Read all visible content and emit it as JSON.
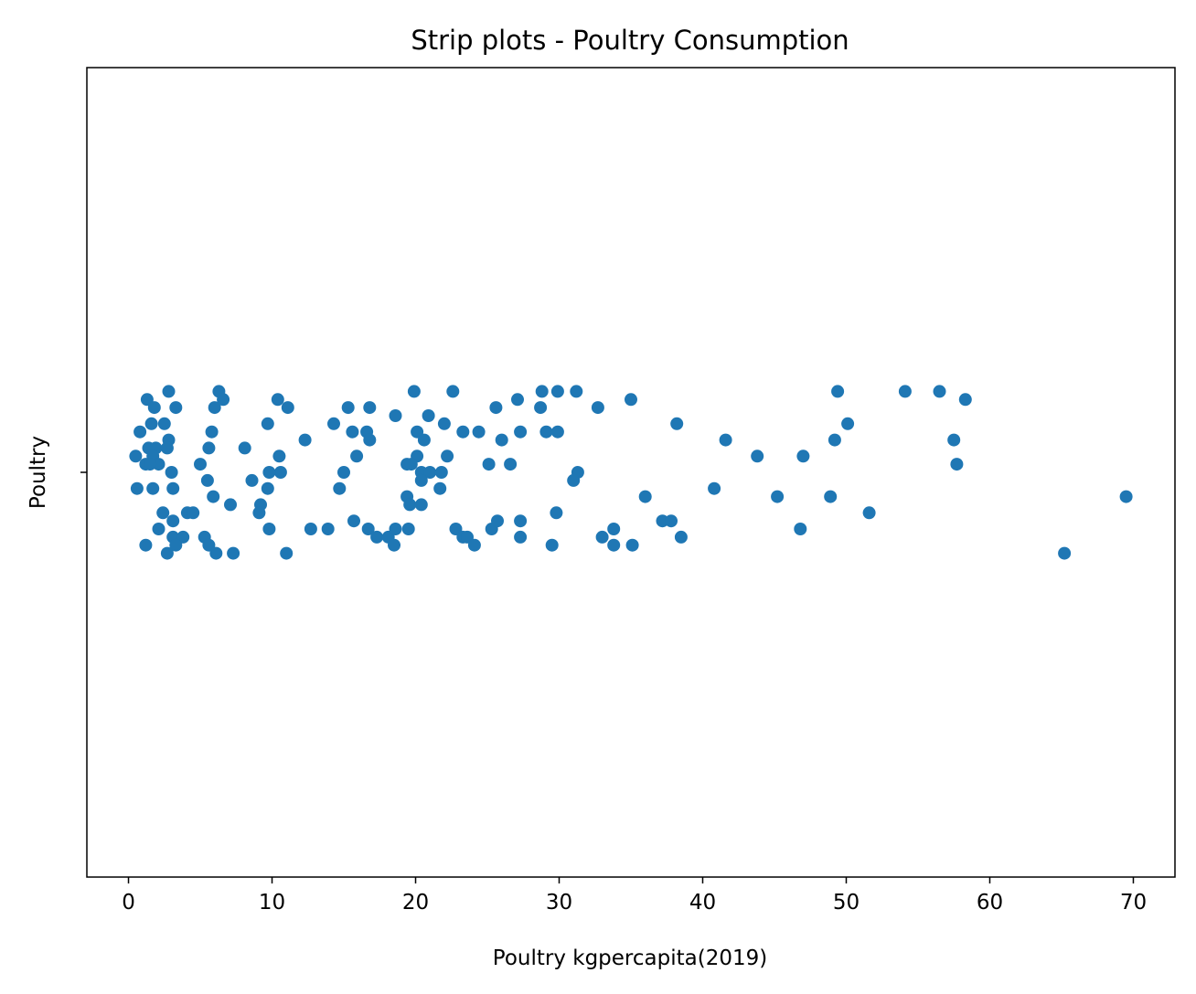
{
  "chart_data": {
    "type": "scatter",
    "title": "Strip plots - Poultry Consumption",
    "xlabel": "Poultry kgpercapita(2019)",
    "ylabel": "Poultry",
    "xlim": [
      -2.9,
      72.9
    ],
    "ylim": [
      -0.5,
      0.5
    ],
    "x_ticks": [
      "0",
      "10",
      "20",
      "30",
      "40",
      "50",
      "60",
      "70"
    ],
    "x_tick_values": [
      0,
      10,
      20,
      30,
      40,
      50,
      60,
      70
    ],
    "y_ticks": [
      ""
    ],
    "y_tick_values": [
      0
    ],
    "grid": false,
    "marker_color": "#1f77b4",
    "series": [
      {
        "name": "",
        "points": [
          [
            1.3,
            0.09
          ],
          [
            1.8,
            0.08
          ],
          [
            2.8,
            0.1
          ],
          [
            3.3,
            0.08
          ],
          [
            1.6,
            0.06
          ],
          [
            0.8,
            0.05
          ],
          [
            2.5,
            0.06
          ],
          [
            1.4,
            0.03
          ],
          [
            1.9,
            0.03
          ],
          [
            2.8,
            0.04
          ],
          [
            0.5,
            0.02
          ],
          [
            1.7,
            0.02
          ],
          [
            2.7,
            0.03
          ],
          [
            1.2,
            0.01
          ],
          [
            2.1,
            0.01
          ],
          [
            3.0,
            0.0
          ],
          [
            1.7,
            -0.02
          ],
          [
            3.1,
            -0.02
          ],
          [
            0.6,
            -0.02
          ],
          [
            1.5,
            0.01
          ],
          [
            2.4,
            -0.05
          ],
          [
            3.1,
            -0.06
          ],
          [
            2.1,
            -0.07
          ],
          [
            3.1,
            -0.08
          ],
          [
            3.8,
            -0.08
          ],
          [
            3.3,
            -0.09
          ],
          [
            1.2,
            -0.09
          ],
          [
            2.7,
            -0.1
          ],
          [
            4.1,
            -0.05
          ],
          [
            4.5,
            -0.05
          ],
          [
            6.3,
            0.1
          ],
          [
            6.0,
            0.08
          ],
          [
            6.6,
            0.09
          ],
          [
            5.8,
            0.05
          ],
          [
            5.6,
            0.03
          ],
          [
            8.1,
            0.03
          ],
          [
            5.0,
            0.01
          ],
          [
            5.5,
            -0.01
          ],
          [
            5.9,
            -0.03
          ],
          [
            7.1,
            -0.04
          ],
          [
            5.3,
            -0.08
          ],
          [
            5.6,
            -0.09
          ],
          [
            6.1,
            -0.1
          ],
          [
            7.3,
            -0.1
          ],
          [
            8.6,
            -0.01
          ],
          [
            9.7,
            0.06
          ],
          [
            10.4,
            0.09
          ],
          [
            11.1,
            0.08
          ],
          [
            10.5,
            0.02
          ],
          [
            10.6,
            0.0
          ],
          [
            9.8,
            0.0
          ],
          [
            9.7,
            -0.02
          ],
          [
            9.2,
            -0.04
          ],
          [
            9.1,
            -0.05
          ],
          [
            9.8,
            -0.07
          ],
          [
            11.0,
            -0.1
          ],
          [
            12.3,
            0.04
          ],
          [
            12.7,
            -0.07
          ],
          [
            14.3,
            0.06
          ],
          [
            15.3,
            0.08
          ],
          [
            16.8,
            0.08
          ],
          [
            15.6,
            0.05
          ],
          [
            16.6,
            0.05
          ],
          [
            16.8,
            0.04
          ],
          [
            15.9,
            0.02
          ],
          [
            15.0,
            0.0
          ],
          [
            14.7,
            -0.02
          ],
          [
            13.9,
            -0.07
          ],
          [
            15.7,
            -0.06
          ],
          [
            16.7,
            -0.07
          ],
          [
            17.3,
            -0.08
          ],
          [
            18.1,
            -0.08
          ],
          [
            18.6,
            -0.07
          ],
          [
            18.5,
            -0.09
          ],
          [
            18.6,
            0.07
          ],
          [
            19.9,
            0.1
          ],
          [
            22.6,
            0.1
          ],
          [
            20.9,
            0.07
          ],
          [
            20.1,
            0.05
          ],
          [
            22.0,
            0.06
          ],
          [
            20.6,
            0.04
          ],
          [
            22.2,
            0.02
          ],
          [
            23.3,
            0.05
          ],
          [
            24.4,
            0.05
          ],
          [
            20.1,
            0.02
          ],
          [
            19.4,
            0.01
          ],
          [
            19.7,
            0.01
          ],
          [
            20.4,
            0.0
          ],
          [
            21.0,
            0.0
          ],
          [
            21.8,
            0.0
          ],
          [
            21.7,
            -0.02
          ],
          [
            20.4,
            -0.01
          ],
          [
            19.4,
            -0.03
          ],
          [
            19.6,
            -0.04
          ],
          [
            20.4,
            -0.04
          ],
          [
            19.5,
            -0.07
          ],
          [
            22.8,
            -0.07
          ],
          [
            23.3,
            -0.08
          ],
          [
            23.6,
            -0.08
          ],
          [
            24.1,
            -0.09
          ],
          [
            25.3,
            -0.07
          ],
          [
            25.7,
            -0.06
          ],
          [
            25.6,
            0.08
          ],
          [
            27.1,
            0.09
          ],
          [
            28.7,
            0.08
          ],
          [
            28.8,
            0.1
          ],
          [
            29.9,
            0.1
          ],
          [
            31.2,
            0.1
          ],
          [
            32.7,
            0.08
          ],
          [
            35.0,
            0.09
          ],
          [
            27.3,
            0.05
          ],
          [
            29.1,
            0.05
          ],
          [
            29.9,
            0.05
          ],
          [
            26.0,
            0.04
          ],
          [
            25.1,
            0.01
          ],
          [
            26.6,
            0.01
          ],
          [
            31.3,
            0.0
          ],
          [
            31.0,
            -0.01
          ],
          [
            27.3,
            -0.06
          ],
          [
            27.3,
            -0.08
          ],
          [
            29.8,
            -0.05
          ],
          [
            29.5,
            -0.09
          ],
          [
            33.0,
            -0.08
          ],
          [
            33.8,
            -0.07
          ],
          [
            33.8,
            -0.09
          ],
          [
            35.1,
            -0.09
          ],
          [
            36.0,
            -0.03
          ],
          [
            37.2,
            -0.06
          ],
          [
            37.8,
            -0.06
          ],
          [
            38.5,
            -0.08
          ],
          [
            38.2,
            0.06
          ],
          [
            40.8,
            -0.02
          ],
          [
            41.6,
            0.04
          ],
          [
            43.8,
            0.02
          ],
          [
            45.2,
            -0.03
          ],
          [
            46.8,
            -0.07
          ],
          [
            47.0,
            0.02
          ],
          [
            49.4,
            0.1
          ],
          [
            49.2,
            0.04
          ],
          [
            50.1,
            0.06
          ],
          [
            48.9,
            -0.03
          ],
          [
            51.6,
            -0.05
          ],
          [
            54.1,
            0.1
          ],
          [
            56.5,
            0.1
          ],
          [
            58.3,
            0.09
          ],
          [
            57.5,
            0.04
          ],
          [
            57.7,
            0.01
          ],
          [
            65.2,
            -0.1
          ],
          [
            69.5,
            -0.03
          ]
        ]
      }
    ]
  }
}
